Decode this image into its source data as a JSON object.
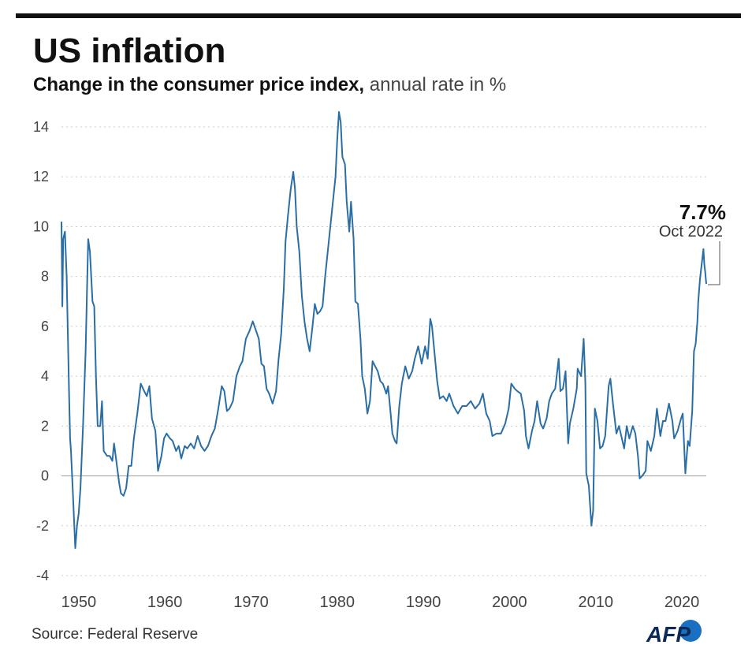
{
  "chart_data": {
    "type": "line",
    "title": "US inflation",
    "subtitle": "Change in the consumer price index,",
    "subtitle_note": "annual rate in %",
    "source": "Source: Federal Reserve",
    "logo": "AFP",
    "annotation": {
      "label": "7.7%",
      "date": "Oct 2022"
    },
    "color": "#2a6ea6",
    "grid": true,
    "xlim": [
      1948,
      2022.83
    ],
    "ylim": [
      -4,
      14
    ],
    "xticks": [
      1950,
      1960,
      1970,
      1980,
      1990,
      2000,
      2010,
      2020
    ],
    "yticks": [
      -4,
      -2,
      0,
      2,
      4,
      6,
      8,
      10,
      12,
      14
    ],
    "x": [
      1948.0,
      1948.1,
      1948.2,
      1948.4,
      1948.6,
      1948.9,
      1949.0,
      1949.1,
      1949.3,
      1949.6,
      1949.8,
      1950.0,
      1950.2,
      1950.5,
      1950.8,
      1951.0,
      1951.1,
      1951.3,
      1951.6,
      1951.8,
      1952.0,
      1952.2,
      1952.5,
      1952.7,
      1952.9,
      1953.3,
      1953.6,
      1953.9,
      1954.1,
      1954.4,
      1954.7,
      1954.9,
      1955.2,
      1955.5,
      1955.8,
      1956.1,
      1956.4,
      1956.8,
      1957.2,
      1957.6,
      1957.9,
      1958.2,
      1958.5,
      1958.9,
      1959.2,
      1959.6,
      1959.9,
      1960.2,
      1960.6,
      1960.9,
      1961.3,
      1961.6,
      1961.9,
      1962.3,
      1962.6,
      1963.0,
      1963.4,
      1963.8,
      1964.2,
      1964.6,
      1965.0,
      1965.4,
      1965.8,
      1966.2,
      1966.6,
      1966.9,
      1967.2,
      1967.5,
      1967.9,
      1968.3,
      1968.7,
      1969.0,
      1969.4,
      1969.8,
      1970.2,
      1970.5,
      1970.9,
      1971.2,
      1971.5,
      1971.8,
      1972.1,
      1972.5,
      1972.9,
      1973.2,
      1973.5,
      1973.8,
      1974.0,
      1974.3,
      1974.6,
      1974.9,
      1975.1,
      1975.3,
      1975.6,
      1975.9,
      1976.2,
      1976.5,
      1976.8,
      1977.1,
      1977.4,
      1977.7,
      1978.0,
      1978.3,
      1978.6,
      1978.9,
      1979.2,
      1979.5,
      1979.8,
      1980.0,
      1980.2,
      1980.4,
      1980.6,
      1980.9,
      1981.1,
      1981.4,
      1981.6,
      1981.9,
      1982.1,
      1982.4,
      1982.7,
      1982.9,
      1983.2,
      1983.5,
      1983.8,
      1984.1,
      1984.4,
      1984.7,
      1985.0,
      1985.3,
      1985.7,
      1985.9,
      1986.2,
      1986.4,
      1986.7,
      1986.9,
      1987.2,
      1987.5,
      1987.9,
      1988.3,
      1988.7,
      1989.0,
      1989.4,
      1989.8,
      1990.2,
      1990.5,
      1990.8,
      1991.0,
      1991.3,
      1991.6,
      1991.9,
      1992.3,
      1992.7,
      1993.0,
      1993.5,
      1994.0,
      1994.5,
      1995.0,
      1995.5,
      1996.0,
      1996.5,
      1996.9,
      1997.3,
      1997.7,
      1998.0,
      1998.5,
      1999.0,
      1999.5,
      1999.9,
      2000.2,
      2000.6,
      2000.9,
      2001.3,
      2001.7,
      2001.9,
      2002.2,
      2002.6,
      2002.9,
      2003.2,
      2003.6,
      2003.9,
      2004.3,
      2004.6,
      2004.9,
      2005.3,
      2005.7,
      2005.9,
      2006.2,
      2006.5,
      2006.8,
      2007.0,
      2007.4,
      2007.8,
      2007.9,
      2008.3,
      2008.6,
      2008.8,
      2008.9,
      2009.2,
      2009.5,
      2009.7,
      2009.9,
      2010.2,
      2010.5,
      2010.8,
      2011.1,
      2011.5,
      2011.7,
      2012.0,
      2012.4,
      2012.7,
      2012.9,
      2013.3,
      2013.6,
      2013.9,
      2014.3,
      2014.6,
      2014.9,
      2015.1,
      2015.4,
      2015.8,
      2016.0,
      2016.4,
      2016.8,
      2017.1,
      2017.5,
      2017.8,
      2018.1,
      2018.5,
      2018.9,
      2019.1,
      2019.5,
      2019.9,
      2020.1,
      2020.4,
      2020.7,
      2020.9,
      2021.2,
      2021.4,
      2021.6,
      2021.8,
      2021.9,
      2022.1,
      2022.3,
      2022.5,
      2022.6,
      2022.7,
      2022.83
    ],
    "values": [
      10.2,
      6.8,
      9.5,
      9.8,
      8.0,
      3.0,
      1.5,
      1.0,
      -0.5,
      -2.9,
      -2.0,
      -1.5,
      -0.5,
      2.0,
      5.0,
      8.0,
      9.5,
      9.0,
      7.0,
      6.8,
      4.0,
      2.0,
      2.0,
      3.0,
      1.0,
      0.8,
      0.8,
      0.6,
      1.3,
      0.5,
      -0.3,
      -0.7,
      -0.8,
      -0.5,
      0.4,
      0.4,
      1.5,
      2.5,
      3.7,
      3.4,
      3.2,
      3.6,
      2.3,
      1.8,
      0.2,
      0.8,
      1.5,
      1.7,
      1.5,
      1.4,
      1.0,
      1.2,
      0.7,
      1.2,
      1.1,
      1.3,
      1.1,
      1.6,
      1.2,
      1.0,
      1.2,
      1.6,
      1.9,
      2.7,
      3.6,
      3.4,
      2.6,
      2.7,
      3.0,
      4.0,
      4.4,
      4.6,
      5.5,
      5.8,
      6.2,
      5.9,
      5.5,
      4.5,
      4.4,
      3.5,
      3.3,
      2.9,
      3.4,
      4.7,
      5.7,
      7.5,
      9.4,
      10.5,
      11.5,
      12.2,
      11.5,
      10.0,
      9.0,
      7.2,
      6.2,
      5.5,
      5.0,
      5.9,
      6.9,
      6.5,
      6.6,
      6.8,
      8.0,
      9.0,
      10.0,
      11.0,
      12.0,
      13.5,
      14.6,
      14.2,
      12.8,
      12.5,
      11.0,
      9.8,
      11.0,
      9.5,
      7.0,
      6.9,
      5.5,
      4.0,
      3.5,
      2.5,
      3.0,
      4.6,
      4.4,
      4.2,
      3.8,
      3.7,
      3.3,
      3.6,
      2.5,
      1.7,
      1.4,
      1.3,
      2.8,
      3.7,
      4.4,
      3.9,
      4.2,
      4.7,
      5.2,
      4.5,
      5.2,
      4.7,
      6.3,
      6.0,
      4.9,
      3.8,
      3.1,
      3.2,
      3.0,
      3.3,
      2.8,
      2.5,
      2.8,
      2.8,
      3.0,
      2.7,
      2.9,
      3.3,
      2.5,
      2.2,
      1.6,
      1.7,
      1.7,
      2.1,
      2.7,
      3.7,
      3.5,
      3.4,
      3.3,
      2.6,
      1.6,
      1.1,
      1.8,
      2.2,
      3.0,
      2.1,
      1.9,
      2.3,
      3.0,
      3.3,
      3.5,
      4.7,
      3.4,
      3.5,
      4.2,
      1.3,
      2.1,
      2.7,
      3.5,
      4.3,
      4.0,
      5.5,
      3.7,
      0.1,
      -0.4,
      -2.0,
      -1.4,
      2.7,
      2.2,
      1.1,
      1.2,
      1.6,
      3.6,
      3.9,
      2.9,
      1.7,
      2.0,
      1.7,
      1.1,
      2.0,
      1.5,
      2.0,
      1.7,
      0.8,
      -0.1,
      0.0,
      0.2,
      1.4,
      1.0,
      1.6,
      2.7,
      1.6,
      2.2,
      2.2,
      2.9,
      2.2,
      1.5,
      1.8,
      2.3,
      2.5,
      0.1,
      1.4,
      1.2,
      2.6,
      5.0,
      5.3,
      6.2,
      7.0,
      7.9,
      8.5,
      9.1,
      8.5,
      8.2,
      7.7
    ]
  }
}
